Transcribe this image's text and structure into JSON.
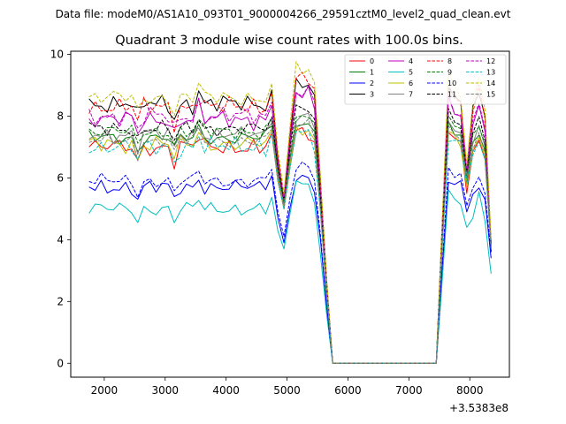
{
  "header": {
    "file_label": "Data file: modeM0/AS1A10_093T01_9000004266_29591cztM0_level2_quad_clean.evt"
  },
  "chart_data": {
    "type": "line",
    "title": "Quadrant 3 module wise count rates with 100.0s bins.",
    "xlabel": "",
    "ylabel": "",
    "x_offset_label": "+3.5383e8",
    "xlim": [
      1450,
      8650
    ],
    "ylim": [
      -0.45,
      10.1
    ],
    "xticks": [
      2000,
      3000,
      4000,
      5000,
      6000,
      7000,
      8000
    ],
    "yticks": [
      0,
      2,
      4,
      6,
      8,
      10
    ],
    "grid": false,
    "legend": {
      "placement": "top-right",
      "columns": 4
    },
    "series": [
      {
        "name": "0",
        "color": "#ff0000",
        "dash": "solid",
        "base": 7.0,
        "amp": 0.3,
        "dip": 5.0,
        "peak": 7.5,
        "r_low": 5.5,
        "r_end": 3.8
      },
      {
        "name": "1",
        "color": "#008000",
        "dash": "solid",
        "base": 7.3,
        "amp": 0.25,
        "dip": 5.1,
        "peak": 7.8,
        "r_low": 5.8,
        "r_end": 3.9
      },
      {
        "name": "2",
        "color": "#0000ff",
        "dash": "solid",
        "base": 5.7,
        "amp": 0.25,
        "dip": 3.9,
        "peak": 6.0,
        "r_low": 4.9,
        "r_end": 3.4
      },
      {
        "name": "3",
        "color": "#000000",
        "dash": "solid",
        "base": 8.4,
        "amp": 0.3,
        "dip": 5.2,
        "peak": 9.0,
        "r_low": 6.2,
        "r_end": 3.6
      },
      {
        "name": "4",
        "color": "#bf00bf",
        "dash": "solid",
        "base": 7.9,
        "amp": 0.3,
        "dip": 5.0,
        "peak": 8.7,
        "r_low": 6.0,
        "r_end": 3.7
      },
      {
        "name": "5",
        "color": "#00bfbf",
        "dash": "solid",
        "base": 5.0,
        "amp": 0.25,
        "dip": 3.7,
        "peak": 5.8,
        "r_low": 4.4,
        "r_end": 2.9
      },
      {
        "name": "6",
        "color": "#bfbf00",
        "dash": "solid",
        "base": 7.1,
        "amp": 0.3,
        "dip": 5.0,
        "peak": 7.6,
        "r_low": 5.7,
        "r_end": 3.8
      },
      {
        "name": "7",
        "color": "#808080",
        "dash": "solid",
        "base": 7.4,
        "amp": 0.25,
        "dip": 5.1,
        "peak": 8.0,
        "r_low": 6.0,
        "r_end": 3.9
      },
      {
        "name": "8",
        "color": "#ff0000",
        "dash": "dashed",
        "base": 8.3,
        "amp": 0.3,
        "dip": 5.4,
        "peak": 9.2,
        "r_low": 6.3,
        "r_end": 3.9
      },
      {
        "name": "9",
        "color": "#008000",
        "dash": "dashed",
        "base": 7.5,
        "amp": 0.25,
        "dip": 5.2,
        "peak": 8.0,
        "r_low": 6.0,
        "r_end": 3.9
      },
      {
        "name": "10",
        "color": "#0000ff",
        "dash": "dashed",
        "base": 5.9,
        "amp": 0.25,
        "dip": 4.1,
        "peak": 6.4,
        "r_low": 5.1,
        "r_end": 3.6
      },
      {
        "name": "11",
        "color": "#000000",
        "dash": "dashed",
        "base": 7.6,
        "amp": 0.25,
        "dip": 5.3,
        "peak": 8.3,
        "r_low": 6.2,
        "r_end": 3.8
      },
      {
        "name": "12",
        "color": "#bf00bf",
        "dash": "dashed",
        "base": 8.0,
        "amp": 0.3,
        "dip": 5.3,
        "peak": 8.8,
        "r_low": 6.2,
        "r_end": 3.8
      },
      {
        "name": "13",
        "color": "#00bfbf",
        "dash": "dashed",
        "base": 7.0,
        "amp": 0.3,
        "dip": 5.0,
        "peak": 7.4,
        "r_low": 5.8,
        "r_end": 3.7
      },
      {
        "name": "14",
        "color": "#bfbf00",
        "dash": "dashed",
        "base": 8.6,
        "amp": 0.3,
        "dip": 5.5,
        "peak": 9.5,
        "r_low": 6.4,
        "r_end": 4.0
      },
      {
        "name": "15",
        "color": "#808080",
        "dash": "dashed",
        "base": 7.2,
        "amp": 0.25,
        "dip": 5.1,
        "peak": 7.8,
        "r_low": 6.0,
        "r_end": 3.8
      }
    ]
  }
}
